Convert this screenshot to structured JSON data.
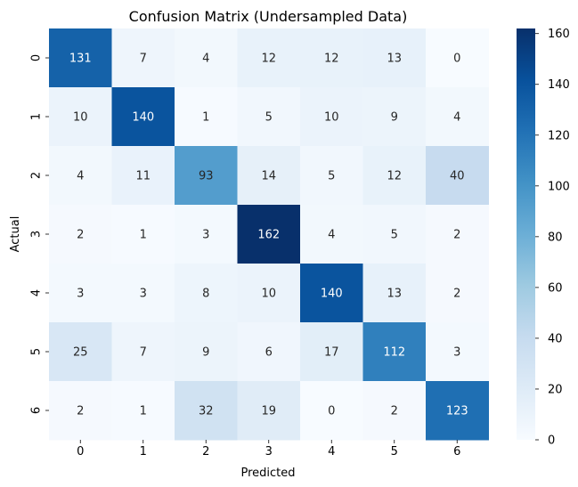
{
  "chart_data": {
    "type": "heatmap",
    "title": "Confusion Matrix (Undersampled Data)",
    "xlabel": "Predicted",
    "ylabel": "Actual",
    "x_categories": [
      "0",
      "1",
      "2",
      "3",
      "4",
      "5",
      "6"
    ],
    "y_categories": [
      "0",
      "1",
      "2",
      "3",
      "4",
      "5",
      "6"
    ],
    "values": [
      [
        131,
        7,
        4,
        12,
        12,
        13,
        0
      ],
      [
        10,
        140,
        1,
        5,
        10,
        9,
        4
      ],
      [
        4,
        11,
        93,
        14,
        5,
        12,
        40
      ],
      [
        2,
        1,
        3,
        162,
        4,
        5,
        2
      ],
      [
        3,
        3,
        8,
        10,
        140,
        13,
        2
      ],
      [
        25,
        7,
        9,
        6,
        17,
        112,
        3
      ],
      [
        2,
        1,
        32,
        19,
        0,
        2,
        123
      ]
    ],
    "colormap": "Blues",
    "color_range": [
      0,
      162
    ],
    "colorbar_ticks": [
      "0",
      "20",
      "40",
      "60",
      "80",
      "100",
      "120",
      "140",
      "160"
    ],
    "annotation_text_color_light": "#ffffff",
    "annotation_text_color_dark": "#262626"
  }
}
